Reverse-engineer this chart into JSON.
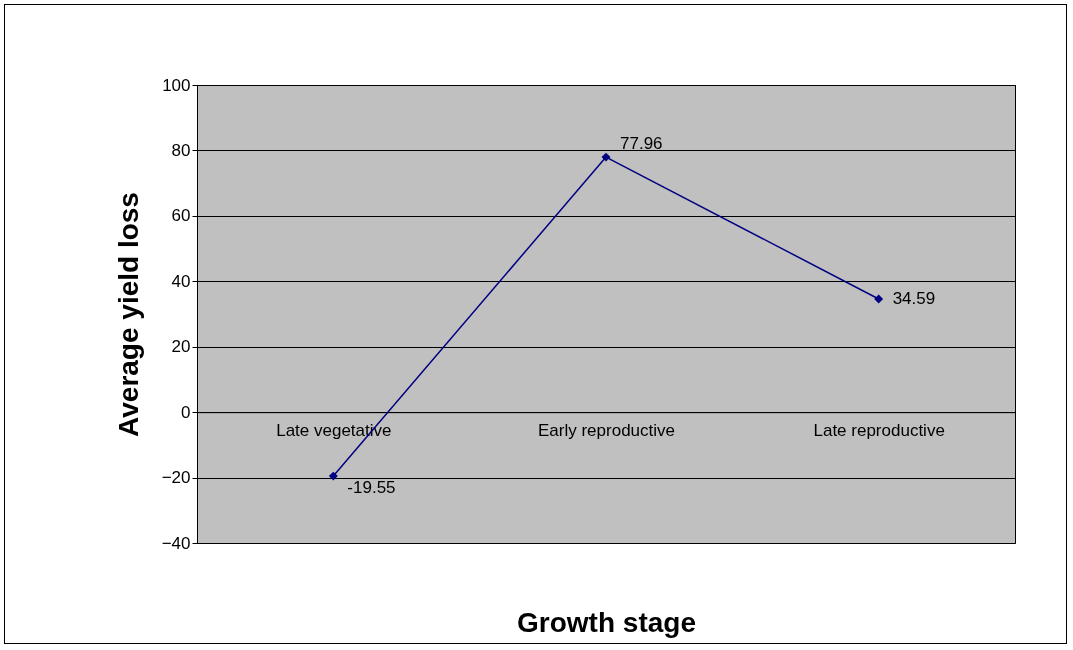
{
  "chart_data": {
    "type": "line",
    "xlabel": "Growth stage",
    "ylabel": "Average yield loss",
    "categories": [
      "Late vegetative",
      "Early reproductive",
      "Late reproductive"
    ],
    "series": [
      {
        "color": "#000080",
        "values": [
          -19.55,
          77.96,
          34.59
        ]
      }
    ],
    "ylim": [
      -40,
      100
    ],
    "yticks": [
      -40,
      -20,
      0,
      20,
      40,
      60,
      80,
      100
    ],
    "grid": "y",
    "marker": "diamond",
    "line_style": "solid",
    "data_labels": true
  }
}
